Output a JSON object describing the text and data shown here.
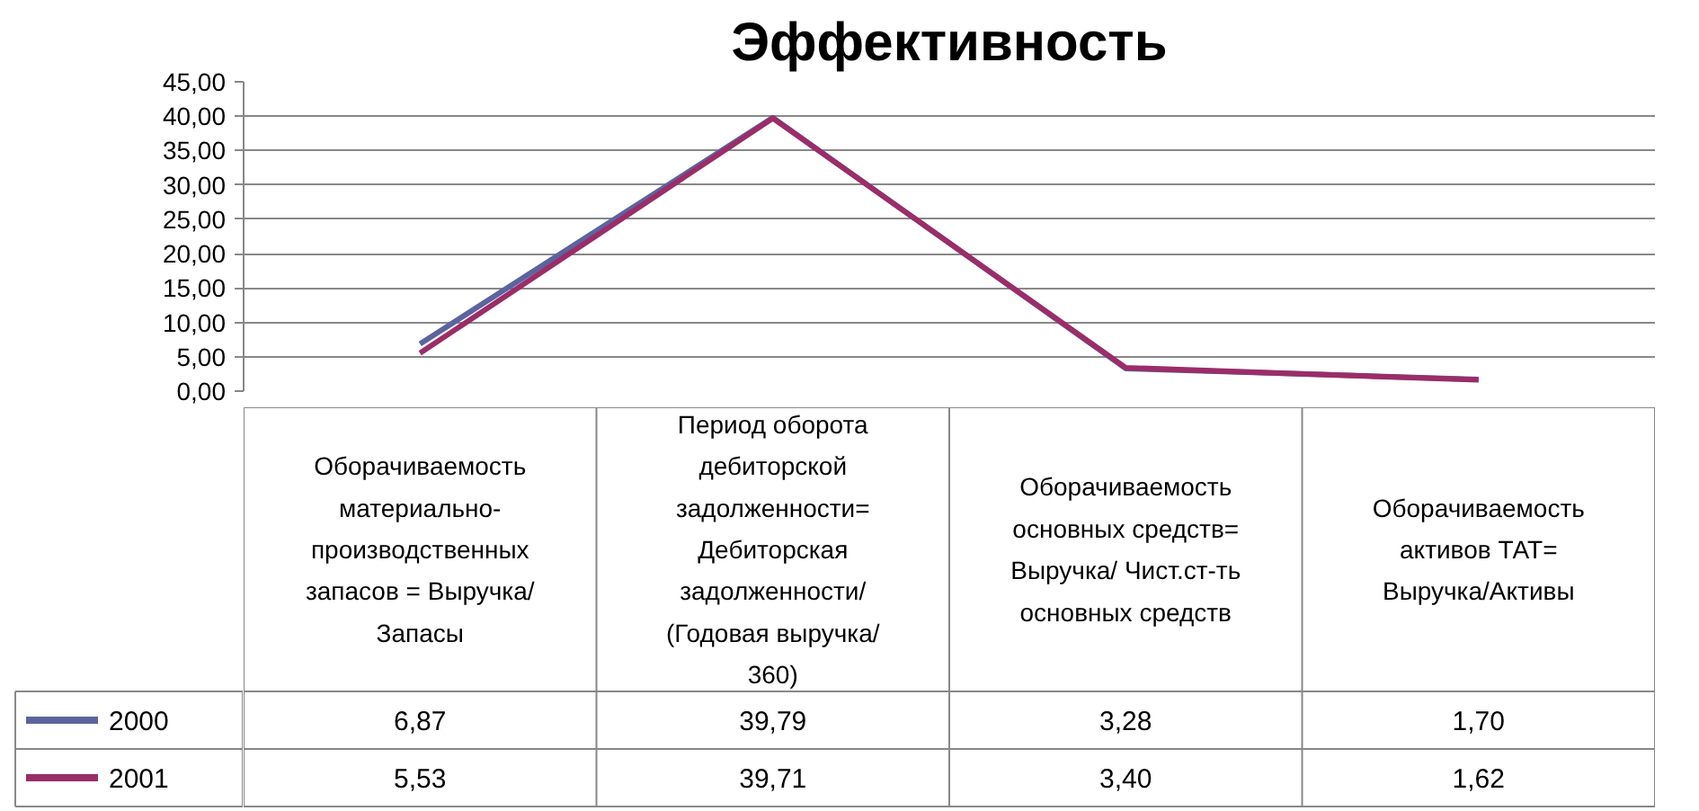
{
  "chart_data": {
    "type": "line",
    "title": "Эффективность",
    "categories": [
      "Оборачиваемость материально-производственных запасов = Выручка/Запасы",
      "Период оборота дебиторской задолженности= Дебиторская задолженности/(Годовая выручка/360)",
      "Оборачиваемость основных средств=Выручка/ Чист.ст-ть основных средств",
      "Оборачиваемость активов ТАТ=Выручка/Активы"
    ],
    "series": [
      {
        "name": "2000",
        "color": "#5b64a0",
        "values": [
          6.87,
          39.79,
          3.28,
          1.7
        ],
        "value_labels": [
          "6,87",
          "39,79",
          "3,28",
          "1,70"
        ]
      },
      {
        "name": "2001",
        "color": "#9b2d68",
        "values": [
          5.53,
          39.71,
          3.4,
          1.62
        ],
        "value_labels": [
          "5,53",
          "39,71",
          "3,40",
          "1,62"
        ]
      }
    ],
    "ylim": [
      0,
      45
    ],
    "yticks": [
      {
        "value": 0,
        "label": "0,00"
      },
      {
        "value": 5,
        "label": "5,00"
      },
      {
        "value": 10,
        "label": "10,00"
      },
      {
        "value": 15,
        "label": "15,00"
      },
      {
        "value": 20,
        "label": "20,00"
      },
      {
        "value": 25,
        "label": "25,00"
      },
      {
        "value": 30,
        "label": "30,00"
      },
      {
        "value": 35,
        "label": "35,00"
      },
      {
        "value": 40,
        "label": "40,00"
      },
      {
        "value": 45,
        "label": "45,00"
      }
    ],
    "grid": "y",
    "legend": "bottom",
    "marker": "none",
    "line_style": "solid"
  }
}
